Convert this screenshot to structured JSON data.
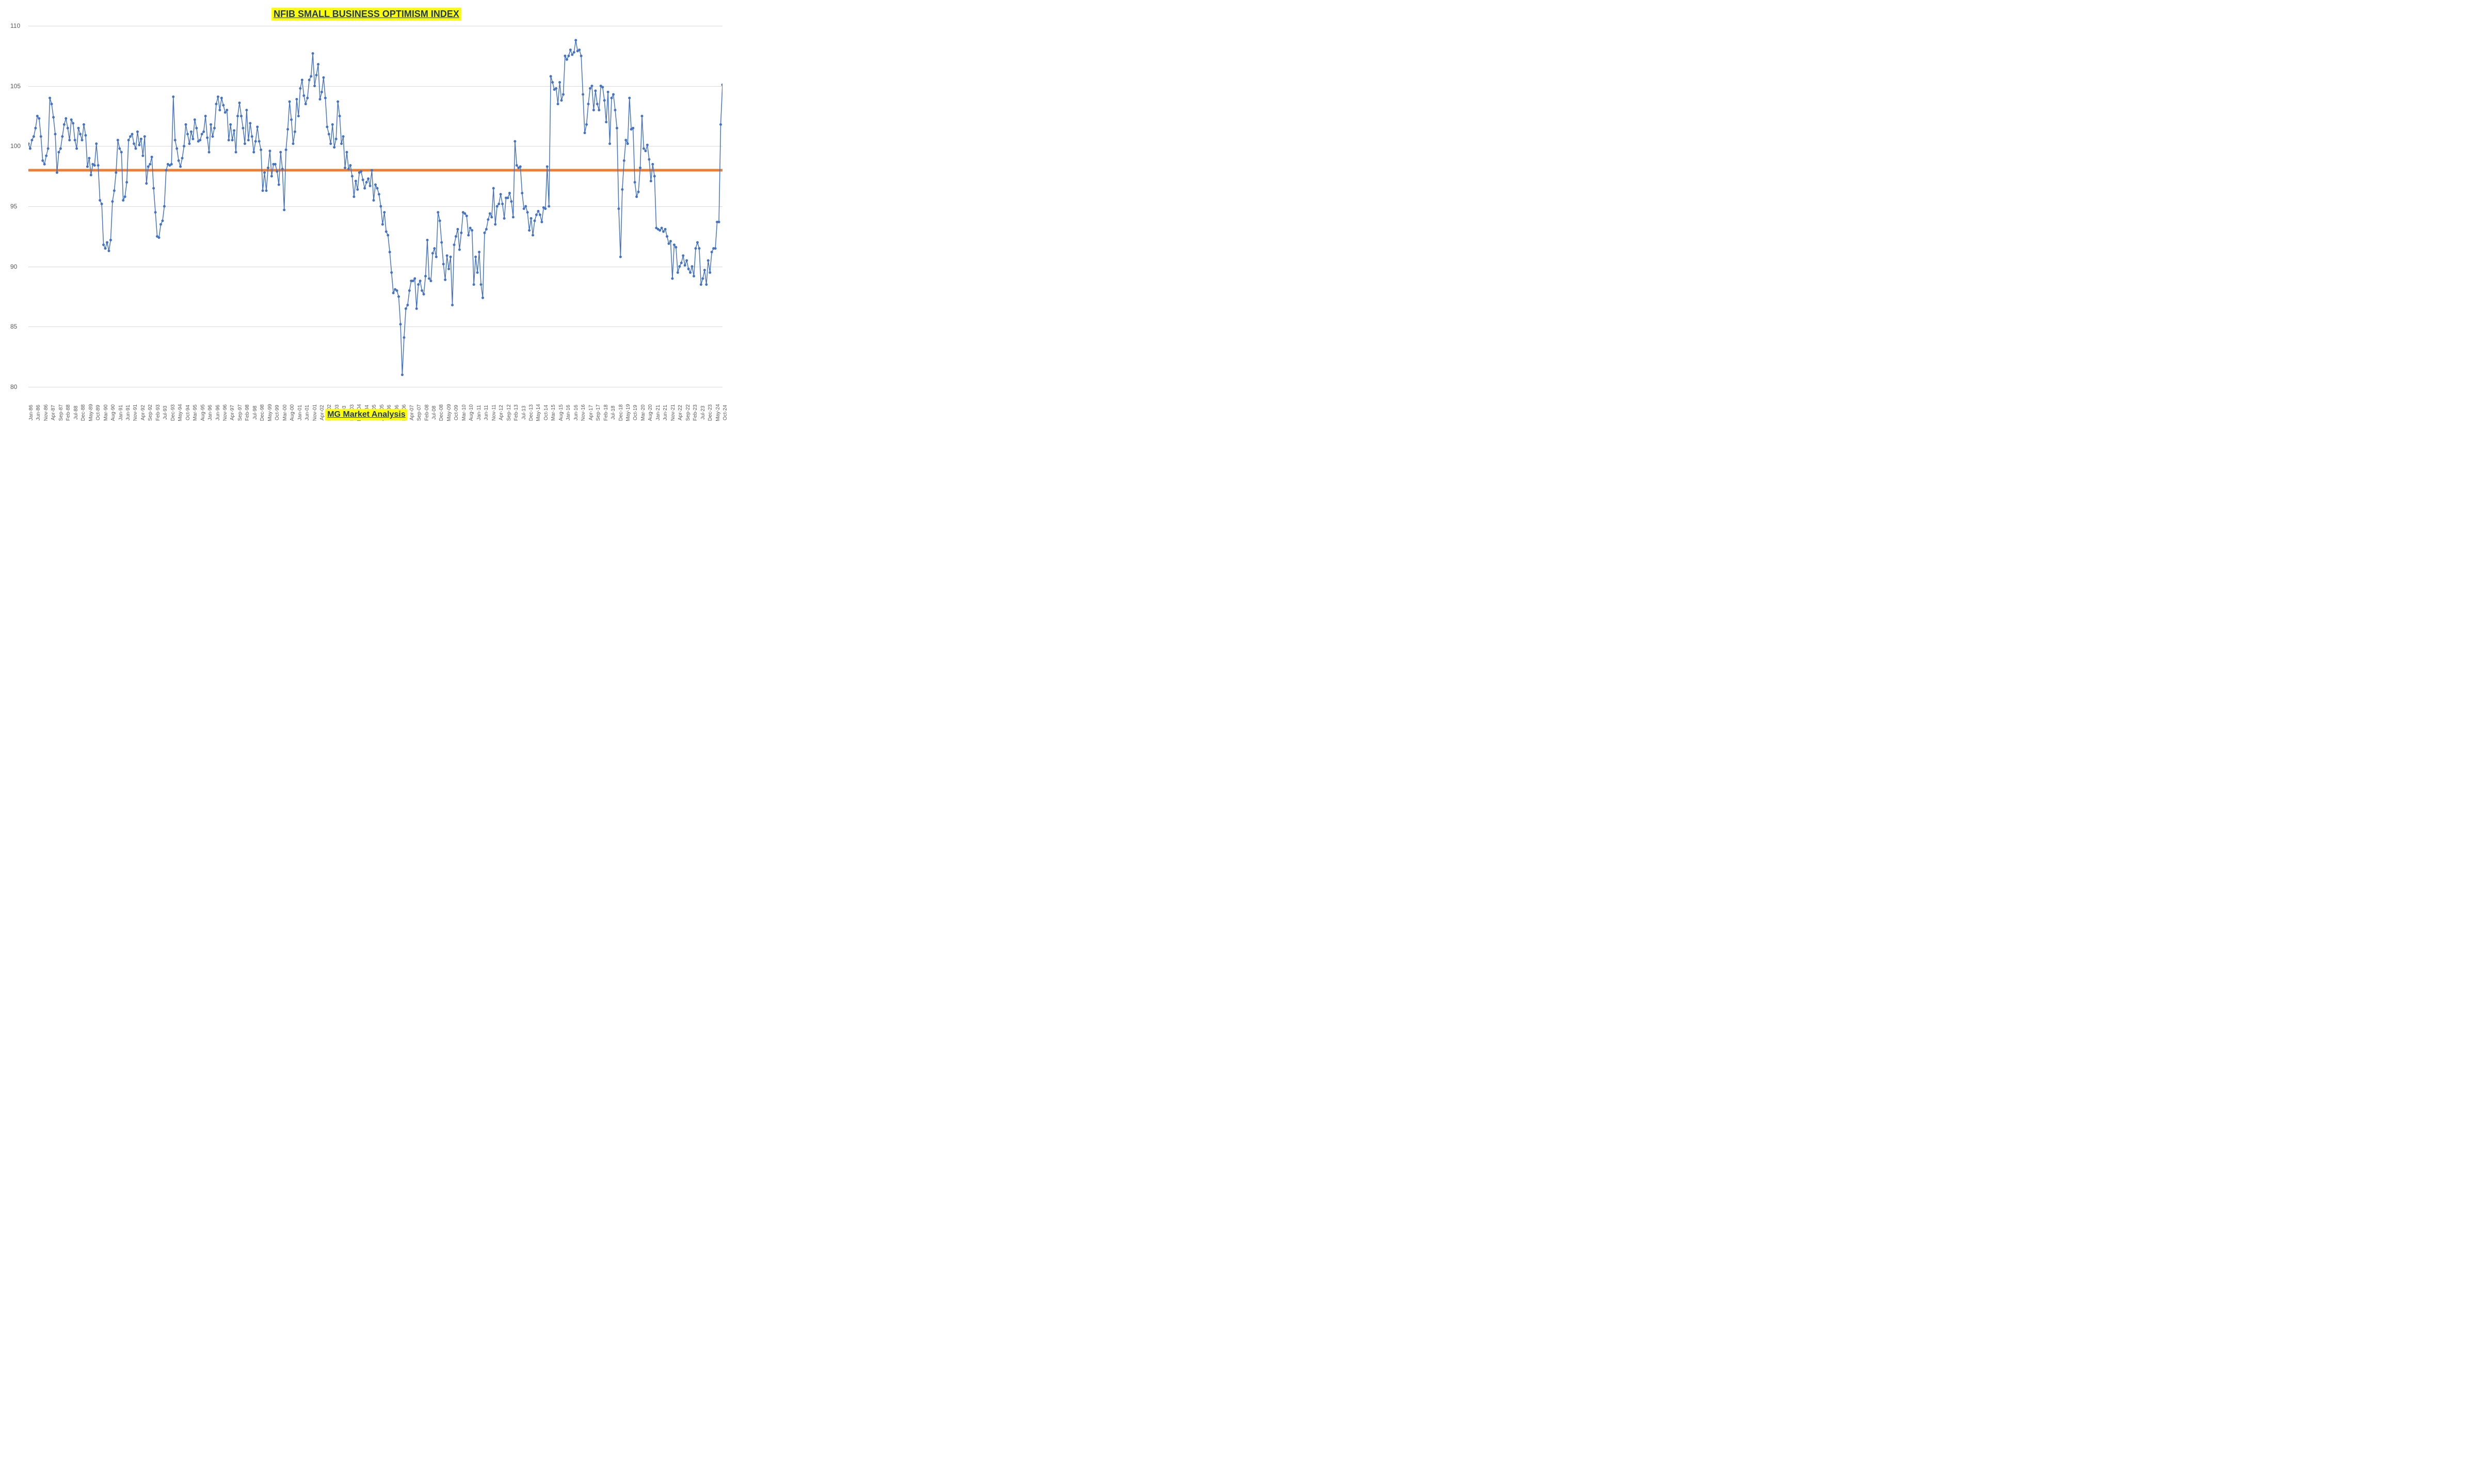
{
  "chart": {
    "type": "line",
    "title": "NFIB SMALL BUSINESS OPTIMISM INDEX",
    "subtitle": "MG Market Analysis",
    "title_bg": "#ffff00",
    "title_color": "#1f3864",
    "title_fontsize": 18,
    "subtitle_fontsize": 16,
    "background_color": "#ffffff",
    "grid_color": "#d9d9d9",
    "axis_label_color": "#595959",
    "axis_fontsize": 12,
    "x_axis_fontsize": 10,
    "ylim": [
      80,
      110
    ],
    "ytick_step": 5,
    "yticks": [
      80,
      85,
      90,
      95,
      100,
      105,
      110
    ],
    "line_color": "#4472c4",
    "line_width": 1.5,
    "marker_size": 2.5,
    "marker_color": "#4472c4",
    "reference_line_value": 98,
    "reference_line_color": "#ed7d31",
    "reference_line_width": 5,
    "x_labels": [
      "Jan-86",
      "Jun-86",
      "Nov-86",
      "Apr-87",
      "Sep-87",
      "Feb-88",
      "Jul-88",
      "Dec-88",
      "May-89",
      "Oct-89",
      "Mar-90",
      "Aug-90",
      "Jan-91",
      "Jun-91",
      "Nov-91",
      "Apr-92",
      "Sep-92",
      "Feb-93",
      "Jul-93",
      "Dec-93",
      "May-94",
      "Oct-94",
      "Mar-95",
      "Aug-95",
      "Jan-96",
      "Jun-96",
      "Nov-96",
      "Apr-97",
      "Sep-97",
      "Feb-98",
      "Jul-98",
      "Dec-98",
      "May-99",
      "Oct-99",
      "Mar-00",
      "Aug-00",
      "Jan-01",
      "Jun-01",
      "Nov-01",
      "Apr-02",
      "Sep-02",
      "Feb-03",
      "Jul-03",
      "Dec-03",
      "May-04",
      "Oct-04",
      "Mar-05",
      "Aug-05",
      "Jan-06",
      "Jun-06",
      "Nov-06",
      "Apr-07",
      "Sep-07",
      "Feb-08",
      "Jul-08",
      "Dec-08",
      "May-09",
      "Oct-09",
      "Mar-10",
      "Aug-10",
      "Jan-11",
      "Jun-11",
      "Nov-11",
      "Apr-12",
      "Sep-12",
      "Feb-13",
      "Jul-13",
      "Dec-13",
      "May-14",
      "Oct-14",
      "Mar-15",
      "Aug-15",
      "Jan-16",
      "Jun-16",
      "Nov-16",
      "Apr-17",
      "Sep-17",
      "Feb-18",
      "Jul-18",
      "Dec-18",
      "May-19",
      "Oct-19",
      "Mar-20",
      "Aug-20",
      "Jan-21",
      "Jun-21",
      "Nov-21",
      "Apr-22",
      "Sep-22",
      "Feb-23",
      "Jul-23",
      "Dec-23",
      "May-24",
      "Oct-24"
    ],
    "values": [
      100.2,
      99.8,
      100.5,
      100.8,
      101.5,
      102.5,
      102.3,
      100.8,
      98.8,
      98.5,
      99.2,
      99.8,
      104.0,
      103.5,
      102.4,
      101,
      97.8,
      99.5,
      99.8,
      100.8,
      101.8,
      102.3,
      101.5,
      100.5,
      102.2,
      101.9,
      100.5,
      99.8,
      101.5,
      101.0,
      100.5,
      101.8,
      100.9,
      98.3,
      99.0,
      97.6,
      98.5,
      98.4,
      100.2,
      98.4,
      95.5,
      95.2,
      91.8,
      91.5,
      92.0,
      91.3,
      92.2,
      95.4,
      96.3,
      97.8,
      100.5,
      99.8,
      99.5,
      95.5,
      95.8,
      97.0,
      100.5,
      100.8,
      101.0,
      100.2,
      99.8,
      101.2,
      100.1,
      100.6,
      99.2,
      100.8,
      96.9,
      98.3,
      98.5,
      99.1,
      96.5,
      94.5,
      92.5,
      92.4,
      93.5,
      93.8,
      95.0,
      98.0,
      98.5,
      98.4,
      98.5,
      104.1,
      100.5,
      99.8,
      98.8,
      98.3,
      99.0,
      100.0,
      101.8,
      101.0,
      100.2,
      101.2,
      100.6,
      102.2,
      101.5,
      100.4,
      100.5,
      101.0,
      101.2,
      102.5,
      100.7,
      99.5,
      101.8,
      100.8,
      101.5,
      103.5,
      104.1,
      103.0,
      104.0,
      103.4,
      102.8,
      103.0,
      100.5,
      101.8,
      100.5,
      101.3,
      99.5,
      102.5,
      103.6,
      102.5,
      101.5,
      100.2,
      103.0,
      100.5,
      101.9,
      100.8,
      99.5,
      100.4,
      101.6,
      100.4,
      99.7,
      96.3,
      97.8,
      96.3,
      98.2,
      99.6,
      97.5,
      98.5,
      98.5,
      97.9,
      96.8,
      99.5,
      98.1,
      94.7,
      99.7,
      101.4,
      103.7,
      102.2,
      100.2,
      101.2,
      103.9,
      102.5,
      104.8,
      105.5,
      104.2,
      103.5,
      104.0,
      105.5,
      105.8,
      107.7,
      105.0,
      105.9,
      106.8,
      103.9,
      104.5,
      105.7,
      104.0,
      101.6,
      101.0,
      100.2,
      101.8,
      99.9,
      100.6,
      103.7,
      102.5,
      100.2,
      100.8,
      98.2,
      99.5,
      98.1,
      98.4,
      97.5,
      95.8,
      97.1,
      96.4,
      97.8,
      97.9,
      97.2,
      96.5,
      97.0,
      97.3,
      96.7,
      98.0,
      95.5,
      96.8,
      96.5,
      96.0,
      95.0,
      93.5,
      94.5,
      92.9,
      92.6,
      91.2,
      89.5,
      87.8,
      88.1,
      88.0,
      87.5,
      85.2,
      81.0,
      84.1,
      86.5,
      86.8,
      88.0,
      88.8,
      88.8,
      89.0,
      86.5,
      88.5,
      88.8,
      88.0,
      87.7,
      89.2,
      92.2,
      89.0,
      88.8,
      91.1,
      91.5,
      90.8,
      94.5,
      93.8,
      92.0,
      90.2,
      88.9,
      90.9,
      89.8,
      90.8,
      86.8,
      91.8,
      92.5,
      93.1,
      91.4,
      92.8,
      94.5,
      94.4,
      94.2,
      92.6,
      93.2,
      93.0,
      88.5,
      90.8,
      89.5,
      91.2,
      88.5,
      87.4,
      92.8,
      93.1,
      93.9,
      94.4,
      94.1,
      96.5,
      93.5,
      95.0,
      95.2,
      96.0,
      95.2,
      94.0,
      95.7,
      95.7,
      96.1,
      95.4,
      94.1,
      100.4,
      98.4,
      98.2,
      98.3,
      96.1,
      94.8,
      95.0,
      94.5,
      93.0,
      94.0,
      92.6,
      93.8,
      94.3,
      94.6,
      94.3,
      93.7,
      94.9,
      94.8,
      98.3,
      95.0,
      105.8,
      105.3,
      104.7,
      104.8,
      103.5,
      105.3,
      103.8,
      104.3,
      107.5,
      107.2,
      107.5,
      108.0,
      107.6,
      107.8,
      108.8,
      107.9,
      108.0,
      107.5,
      104.3,
      101.1,
      101.8,
      103.5,
      104.8,
      105.0,
      103.0,
      104.6,
      103.5,
      103.0,
      105.0,
      104.9,
      103.8,
      102.0,
      104.5,
      100.2,
      104.0,
      104.3,
      103.0,
      101.5,
      94.8,
      90.8,
      96.4,
      98.8,
      100.5,
      100.2,
      104.0,
      101.4,
      101.5,
      97.0,
      95.8,
      96.2,
      98.2,
      102.5,
      99.8,
      99.6,
      100.1,
      98.9,
      97.1,
      98.5,
      97.5,
      93.2,
      93.1,
      93.0,
      93.2,
      92.9,
      93.1,
      92.5,
      91.9,
      92.1,
      89.0,
      91.8,
      91.6,
      89.5,
      90.0,
      90.3,
      90.9,
      90.1,
      90.5,
      89.8,
      89.5,
      90.0,
      89.2,
      91.5,
      92.0,
      91.5,
      88.5,
      89.0,
      89.7,
      88.5,
      90.5,
      89.5,
      91.2,
      91.5,
      91.5,
      93.7,
      93.7,
      101.8,
      105.1
    ]
  }
}
